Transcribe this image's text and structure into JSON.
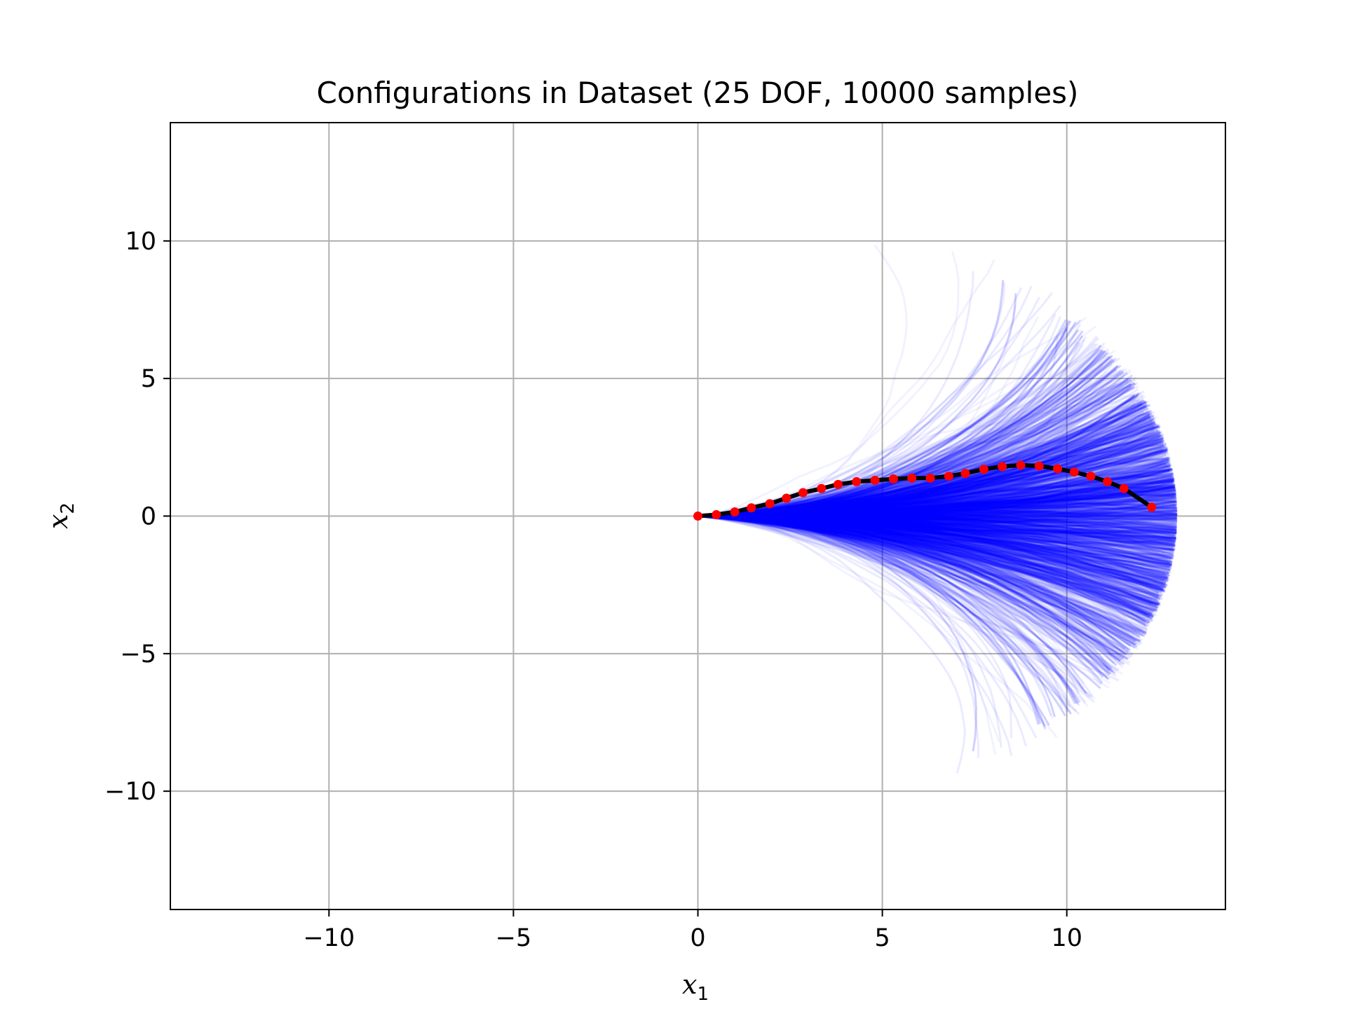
{
  "chart_data": {
    "type": "line",
    "title": "Configurations in Dataset (25 DOF, 10000 samples)",
    "xlabel": {
      "base": "x",
      "sub": "1"
    },
    "ylabel": {
      "base": "x",
      "sub": "2"
    },
    "xlim": [
      -14.3,
      14.3
    ],
    "ylim": [
      -14.3,
      14.3
    ],
    "xticks": [
      -10,
      -5,
      0,
      5,
      10
    ],
    "yticks": [
      -10,
      -5,
      0,
      5,
      10
    ],
    "xtick_labels": [
      "−10",
      "−5",
      "0",
      "5",
      "10"
    ],
    "ytick_labels": [
      "−10",
      "−5",
      "0",
      "5",
      "10"
    ],
    "grid": true,
    "colors": {
      "samples": "#0000ff",
      "highlighted_chain": "#000000",
      "joints": "#ff0000",
      "grid": "#b0b0b0"
    },
    "samples_envelope": {
      "description_free": true,
      "max_reach": 13.0,
      "dense_angle_range_deg": [
        -35,
        28
      ],
      "faint_angle_range_deg": [
        -50,
        50
      ]
    },
    "series": [
      {
        "x": [
          0.0,
          0.5,
          1.0,
          1.45,
          1.95,
          2.4,
          2.85,
          3.35,
          3.8,
          4.3,
          4.8,
          5.3,
          5.8,
          6.3,
          6.8,
          7.25,
          7.75,
          8.25,
          8.75,
          9.25,
          9.75,
          10.2,
          10.65,
          11.1,
          11.55,
          12.3
        ],
        "y": [
          0.0,
          0.05,
          0.15,
          0.3,
          0.45,
          0.65,
          0.85,
          1.0,
          1.15,
          1.25,
          1.3,
          1.35,
          1.38,
          1.38,
          1.45,
          1.55,
          1.7,
          1.8,
          1.85,
          1.82,
          1.72,
          1.6,
          1.45,
          1.25,
          1.0,
          0.32
        ]
      }
    ]
  }
}
